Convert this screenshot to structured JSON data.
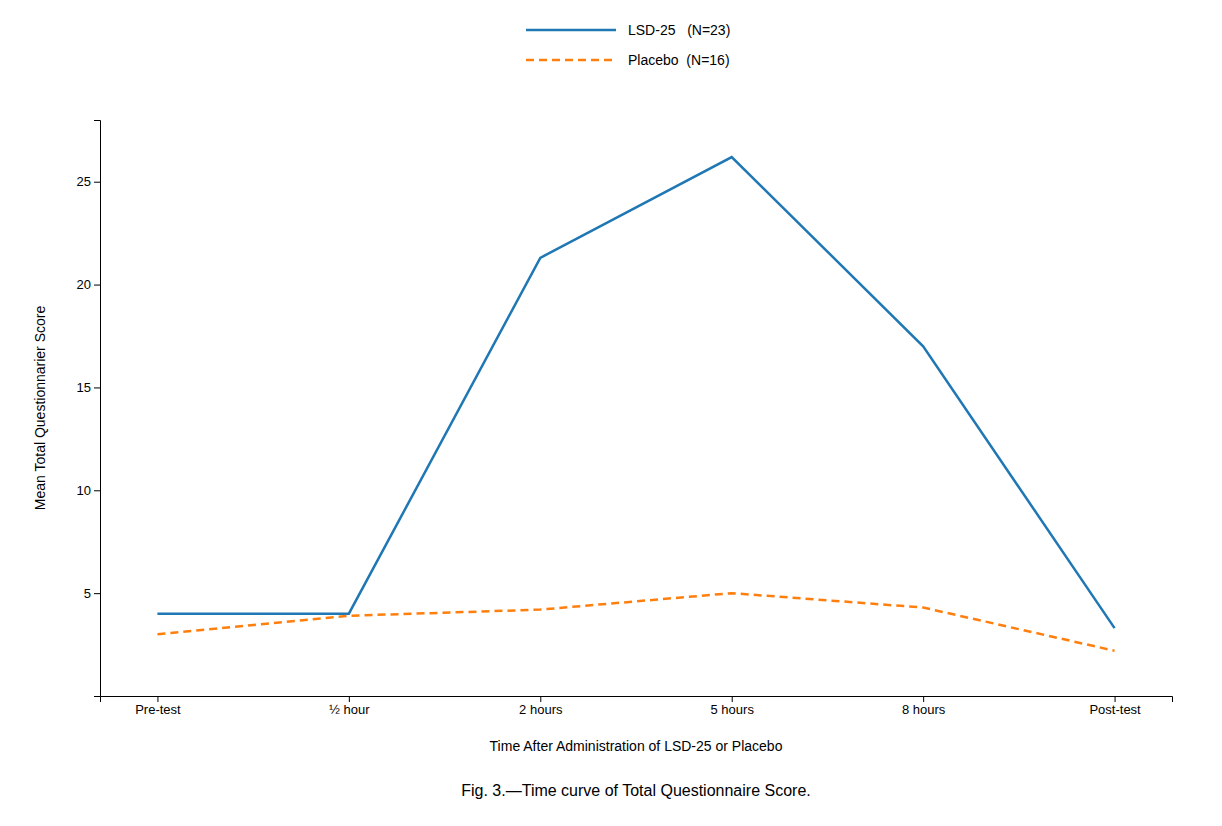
{
  "chart_data": {
    "type": "line",
    "title": "Fig. 3.—Time curve of Total Questionnaire Score.",
    "x_label": "Time After Administration of LSD-25 or Placebo",
    "y_label": "Mean Total Questionnarier Score",
    "categories": [
      "Pre-test",
      "½ hour",
      "2 hours",
      "5 hours",
      "8 hours",
      "Post-test"
    ],
    "series": [
      {
        "name": "LSD-25   (N=23)",
        "values": [
          4.0,
          4.0,
          21.3,
          26.2,
          17.0,
          3.3
        ],
        "line_style": "solid"
      },
      {
        "name": "Placebo  (N=16)",
        "values": [
          3.0,
          3.9,
          4.2,
          5.0,
          4.3,
          2.2
        ],
        "line_style": "dashed"
      }
    ],
    "ylim": [
      0,
      28
    ],
    "yticks": [
      5,
      10,
      15,
      20,
      25
    ],
    "grid": false,
    "legend": "top"
  }
}
